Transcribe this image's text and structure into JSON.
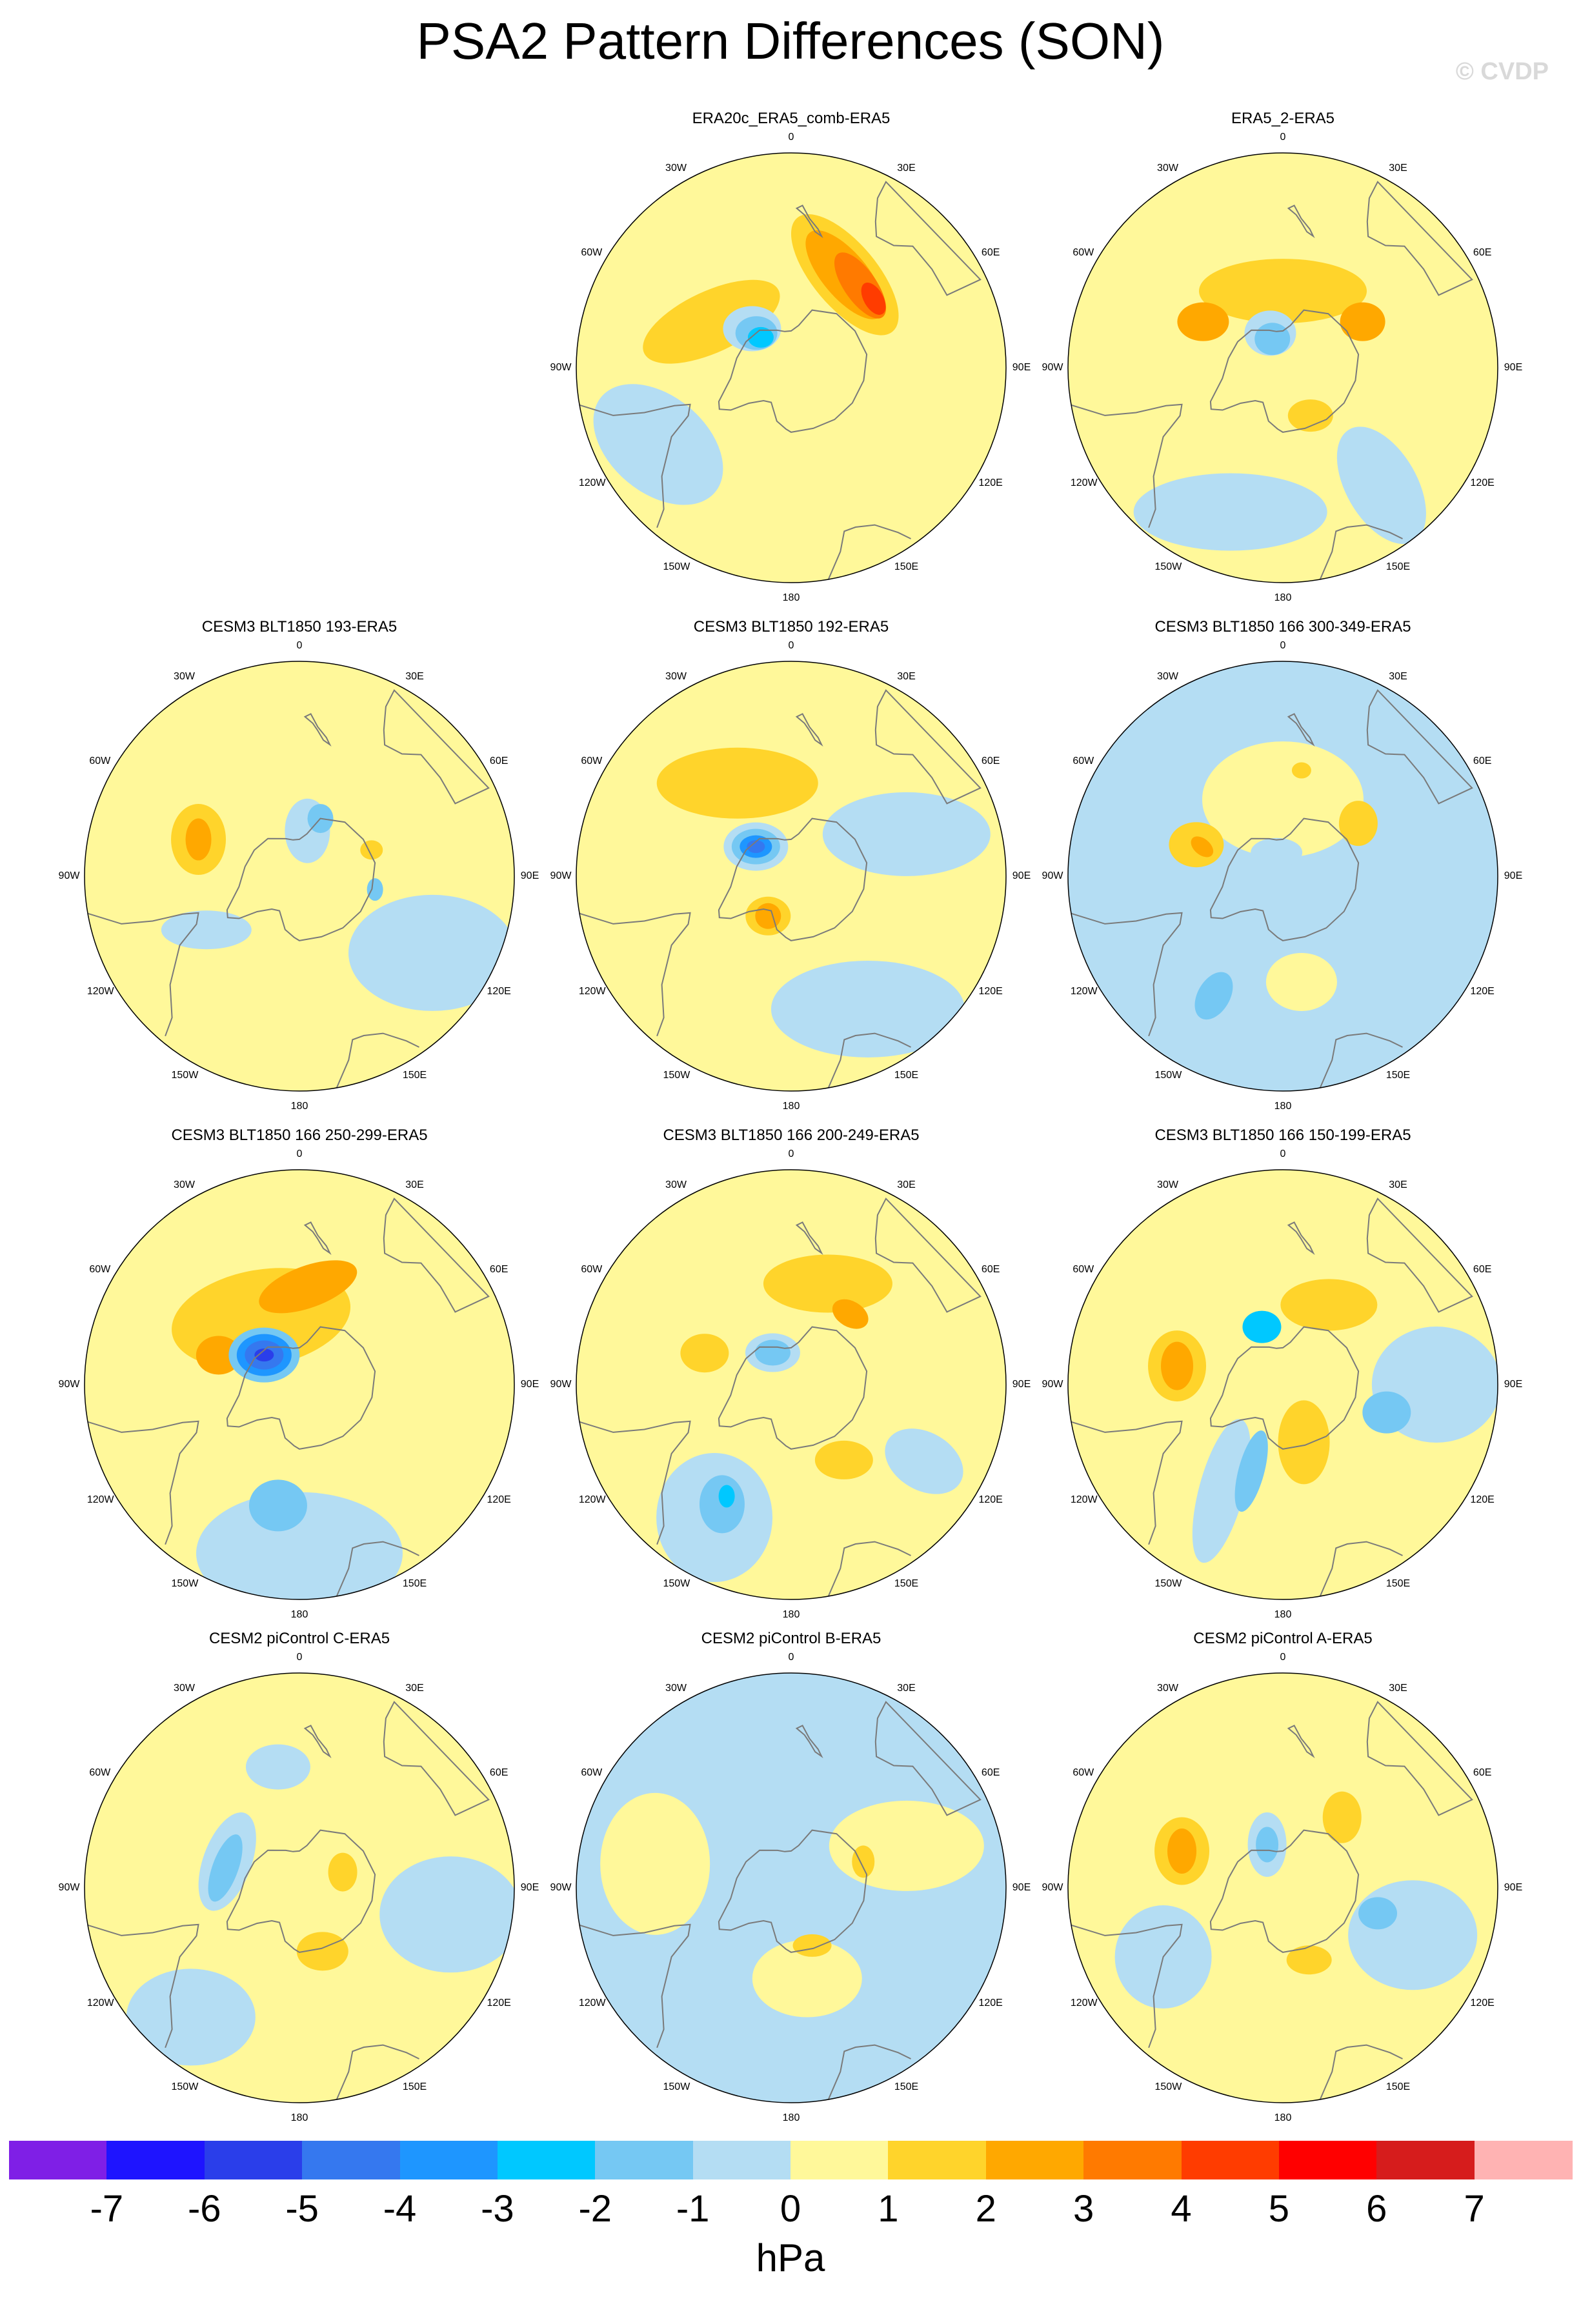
{
  "title": "PSA2 Pattern Differences (SON)",
  "watermark": "© CVDP",
  "units": "hPa",
  "lon_labels": [
    "0",
    "30E",
    "60E",
    "90E",
    "120E",
    "150E",
    "180",
    "150W",
    "120W",
    "90W",
    "60W",
    "30W"
  ],
  "colors": {
    "land_outline": "#7a7a7a",
    "panel_outline": "#000000"
  },
  "colorbar": {
    "colors": [
      "#7f1fe6",
      "#1e14ff",
      "#2a3eea",
      "#3578ef",
      "#1e96ff",
      "#00c8ff",
      "#75c8f3",
      "#b4ddf3",
      "#fff89a",
      "#ffd42b",
      "#ffa800",
      "#ff7a00",
      "#ff3c00",
      "#ff0000",
      "#d61c1c",
      "#ffb3b3"
    ],
    "labels": [
      "-7",
      "-6",
      "-5",
      "-4",
      "-3",
      "-2",
      "-1",
      "0",
      "1",
      "2",
      "3",
      "4",
      "5",
      "6",
      "7"
    ]
  },
  "panels": [
    {
      "title": "ERA20c_ERA5_comb-ERA5",
      "bg": "#fff89a",
      "blobs": [
        {
          "lon": 300,
          "lat": -40,
          "a": 230,
          "b": 150,
          "rot": 40,
          "color": "#b4ddf3"
        },
        {
          "lon": 240,
          "lat": -60,
          "a": 230,
          "b": 95,
          "rot": -25,
          "color": "#ffd42b"
        },
        {
          "lon": 150,
          "lat": -55,
          "a": 230,
          "b": 100,
          "rot": 50,
          "color": "#ffd42b"
        },
        {
          "lon": 150,
          "lat": -55,
          "a": 170,
          "b": 70,
          "rot": 50,
          "color": "#ffa800"
        },
        {
          "lon": 140,
          "lat": -55,
          "a": 120,
          "b": 50,
          "rot": 55,
          "color": "#ff7a00"
        },
        {
          "lon": 130,
          "lat": -55,
          "a": 55,
          "b": 30,
          "rot": 60,
          "color": "#ff3c00"
        },
        {
          "lon": 225,
          "lat": -72,
          "a": 90,
          "b": 70,
          "rot": 0,
          "color": "#b4ddf3"
        },
        {
          "lon": 225,
          "lat": -74,
          "a": 65,
          "b": 52,
          "rot": 0,
          "color": "#75c8f3"
        },
        {
          "lon": 225,
          "lat": -76,
          "a": 40,
          "b": 32,
          "rot": 0,
          "color": "#00c8ff"
        }
      ]
    },
    {
      "title": "ERA5_2-ERA5",
      "bg": "#fff89a",
      "blobs": [
        {
          "lon": 340,
          "lat": -40,
          "a": 300,
          "b": 120,
          "rot": 0,
          "color": "#b4ddf3"
        },
        {
          "lon": 40,
          "lat": -40,
          "a": 200,
          "b": 110,
          "rot": 60,
          "color": "#b4ddf3"
        },
        {
          "lon": 180,
          "lat": -65,
          "a": 260,
          "b": 100,
          "rot": 0,
          "color": "#ffd42b"
        },
        {
          "lon": 240,
          "lat": -60,
          "a": 80,
          "b": 60,
          "rot": 0,
          "color": "#ffa800"
        },
        {
          "lon": 120,
          "lat": -60,
          "a": 70,
          "b": 60,
          "rot": 0,
          "color": "#ffa800"
        },
        {
          "lon": 30,
          "lat": -72,
          "a": 70,
          "b": 50,
          "rot": 0,
          "color": "#ffd42b"
        },
        {
          "lon": 200,
          "lat": -78,
          "a": 80,
          "b": 70,
          "rot": 0,
          "color": "#b4ddf3"
        },
        {
          "lon": 200,
          "lat": -80,
          "a": 55,
          "b": 50,
          "rot": 0,
          "color": "#75c8f3"
        }
      ]
    },
    {
      "title": "CESM3 BLT1850 193-ERA5",
      "bg": "#fff89a",
      "blobs": [
        {
          "lon": 60,
          "lat": -40,
          "a": 260,
          "b": 180,
          "rot": 0,
          "color": "#b4ddf3"
        },
        {
          "lon": 300,
          "lat": -55,
          "a": 140,
          "b": 60,
          "rot": 0,
          "color": "#b4ddf3"
        },
        {
          "lon": 250,
          "lat": -55,
          "a": 85,
          "b": 110,
          "rot": 0,
          "color": "#ffd42b"
        },
        {
          "lon": 250,
          "lat": -55,
          "a": 40,
          "b": 65,
          "rot": 0,
          "color": "#ffa800"
        },
        {
          "lon": 170,
          "lat": -75,
          "a": 70,
          "b": 100,
          "rot": 0,
          "color": "#b4ddf3"
        },
        {
          "lon": 160,
          "lat": -70,
          "a": 40,
          "b": 45,
          "rot": 0,
          "color": "#75c8f3"
        },
        {
          "lon": 80,
          "lat": -65,
          "a": 25,
          "b": 35,
          "rot": 0,
          "color": "#75c8f3"
        },
        {
          "lon": 110,
          "lat": -65,
          "a": 35,
          "b": 30,
          "rot": 0,
          "color": "#ffd42b"
        }
      ]
    },
    {
      "title": "CESM3 BLT1850 192-ERA5",
      "bg": "#fff89a",
      "blobs": [
        {
          "lon": 30,
          "lat": -40,
          "a": 300,
          "b": 150,
          "rot": 0,
          "color": "#b4ddf3"
        },
        {
          "lon": 110,
          "lat": -50,
          "a": 260,
          "b": 130,
          "rot": 0,
          "color": "#b4ddf3"
        },
        {
          "lon": 210,
          "lat": -55,
          "a": 250,
          "b": 110,
          "rot": 0,
          "color": "#ffd42b"
        },
        {
          "lon": 330,
          "lat": -75,
          "a": 70,
          "b": 60,
          "rot": 0,
          "color": "#ffd42b"
        },
        {
          "lon": 330,
          "lat": -75,
          "a": 40,
          "b": 40,
          "rot": 0,
          "color": "#ffa800"
        },
        {
          "lon": 230,
          "lat": -75,
          "a": 100,
          "b": 75,
          "rot": 0,
          "color": "#b4ddf3"
        },
        {
          "lon": 230,
          "lat": -75,
          "a": 75,
          "b": 55,
          "rot": 0,
          "color": "#75c8f3"
        },
        {
          "lon": 230,
          "lat": -75,
          "a": 50,
          "b": 35,
          "rot": 0,
          "color": "#1e96ff"
        },
        {
          "lon": 230,
          "lat": -75,
          "a": 28,
          "b": 20,
          "rot": 0,
          "color": "#3578ef"
        }
      ]
    },
    {
      "title": "CESM3 BLT1850 166 300-349-ERA5",
      "bg": "#b4ddf3",
      "blobs": [
        {
          "lon": 180,
          "lat": -65,
          "a": 250,
          "b": 180,
          "rot": 0,
          "color": "#fff89a"
        },
        {
          "lon": 10,
          "lat": -55,
          "a": 110,
          "b": 90,
          "rot": 0,
          "color": "#fff89a"
        },
        {
          "lon": 250,
          "lat": -60,
          "a": 85,
          "b": 70,
          "rot": 0,
          "color": "#ffd42b"
        },
        {
          "lon": 250,
          "lat": -62,
          "a": 40,
          "b": 25,
          "rot": 40,
          "color": "#ffa800"
        },
        {
          "lon": 125,
          "lat": -60,
          "a": 60,
          "b": 70,
          "rot": 0,
          "color": "#ffd42b"
        },
        {
          "lon": 170,
          "lat": -55,
          "a": 30,
          "b": 25,
          "rot": 0,
          "color": "#ffd42b"
        },
        {
          "lon": 195,
          "lat": -82,
          "a": 80,
          "b": 45,
          "rot": 0,
          "color": "#b4ddf3"
        },
        {
          "lon": 330,
          "lat": -45,
          "a": 50,
          "b": 80,
          "rot": 30,
          "color": "#75c8f3"
        }
      ]
    },
    {
      "title": "CESM3 BLT1850 166 250-299-ERA5",
      "bg": "#fff89a",
      "blobs": [
        {
          "lon": 0,
          "lat": -35,
          "a": 320,
          "b": 190,
          "rot": 0,
          "color": "#b4ddf3"
        },
        {
          "lon": 350,
          "lat": -50,
          "a": 90,
          "b": 80,
          "rot": 0,
          "color": "#75c8f3"
        },
        {
          "lon": 210,
          "lat": -65,
          "a": 280,
          "b": 150,
          "rot": -10,
          "color": "#ffd42b"
        },
        {
          "lon": 175,
          "lat": -58,
          "a": 160,
          "b": 65,
          "rot": -20,
          "color": "#ffa800"
        },
        {
          "lon": 250,
          "lat": -62,
          "a": 70,
          "b": 60,
          "rot": 0,
          "color": "#ffa800"
        },
        {
          "lon": 230,
          "lat": -75,
          "a": 110,
          "b": 85,
          "rot": 0,
          "color": "#75c8f3"
        },
        {
          "lon": 230,
          "lat": -75,
          "a": 85,
          "b": 65,
          "rot": 0,
          "color": "#1e96ff"
        },
        {
          "lon": 230,
          "lat": -75,
          "a": 60,
          "b": 45,
          "rot": 0,
          "color": "#3578ef"
        },
        {
          "lon": 230,
          "lat": -75,
          "a": 30,
          "b": 20,
          "rot": 0,
          "color": "#2a3eea"
        }
      ]
    },
    {
      "title": "CESM3 BLT1850 166 200-249-ERA5",
      "bg": "#fff89a",
      "blobs": [
        {
          "lon": 330,
          "lat": -40,
          "a": 180,
          "b": 200,
          "rot": 0,
          "color": "#b4ddf3"
        },
        {
          "lon": 60,
          "lat": -40,
          "a": 130,
          "b": 90,
          "rot": 30,
          "color": "#b4ddf3"
        },
        {
          "lon": 330,
          "lat": -45,
          "a": 70,
          "b": 90,
          "rot": 0,
          "color": "#75c8f3"
        },
        {
          "lon": 330,
          "lat": -48,
          "a": 25,
          "b": 35,
          "rot": 0,
          "color": "#00c8ff"
        },
        {
          "lon": 35,
          "lat": -60,
          "a": 90,
          "b": 60,
          "rot": 0,
          "color": "#ffd42b"
        },
        {
          "lon": 160,
          "lat": -55,
          "a": 200,
          "b": 90,
          "rot": 0,
          "color": "#ffd42b"
        },
        {
          "lon": 140,
          "lat": -60,
          "a": 60,
          "b": 40,
          "rot": 30,
          "color": "#ffa800"
        },
        {
          "lon": 250,
          "lat": -60,
          "a": 75,
          "b": 60,
          "rot": 0,
          "color": "#ffd42b"
        },
        {
          "lon": 210,
          "lat": -78,
          "a": 85,
          "b": 60,
          "rot": 0,
          "color": "#b4ddf3"
        },
        {
          "lon": 210,
          "lat": -78,
          "a": 55,
          "b": 40,
          "rot": 0,
          "color": "#75c8f3"
        }
      ]
    },
    {
      "title": "CESM3 BLT1850 166 150-199-ERA5",
      "bg": "#fff89a",
      "blobs": [
        {
          "lon": 90,
          "lat": -40,
          "a": 200,
          "b": 180,
          "rot": 0,
          "color": "#b4ddf3"
        },
        {
          "lon": 75,
          "lat": -55,
          "a": 75,
          "b": 65,
          "rot": 0,
          "color": "#75c8f3"
        },
        {
          "lon": 330,
          "lat": -50,
          "a": 70,
          "b": 230,
          "rot": 15,
          "color": "#b4ddf3"
        },
        {
          "lon": 340,
          "lat": -60,
          "a": 40,
          "b": 130,
          "rot": 15,
          "color": "#75c8f3"
        },
        {
          "lon": 200,
          "lat": -70,
          "a": 60,
          "b": 50,
          "rot": 0,
          "color": "#00c8ff"
        },
        {
          "lon": 260,
          "lat": -55,
          "a": 90,
          "b": 110,
          "rot": 0,
          "color": "#ffd42b"
        },
        {
          "lon": 260,
          "lat": -55,
          "a": 50,
          "b": 75,
          "rot": 0,
          "color": "#ffa800"
        },
        {
          "lon": 20,
          "lat": -70,
          "a": 80,
          "b": 130,
          "rot": 0,
          "color": "#ffd42b"
        },
        {
          "lon": 150,
          "lat": -60,
          "a": 150,
          "b": 80,
          "rot": 0,
          "color": "#ffd42b"
        }
      ]
    },
    {
      "title": "CESM2 piControl C-ERA5",
      "bg": "#fff89a",
      "blobs": [
        {
          "lon": 80,
          "lat": -40,
          "a": 220,
          "b": 180,
          "rot": 0,
          "color": "#b4ddf3"
        },
        {
          "lon": 320,
          "lat": -35,
          "a": 200,
          "b": 150,
          "rot": 0,
          "color": "#b4ddf3"
        },
        {
          "lon": 190,
          "lat": -50,
          "a": 100,
          "b": 70,
          "rot": 0,
          "color": "#b4ddf3"
        },
        {
          "lon": 250,
          "lat": -65,
          "a": 75,
          "b": 160,
          "rot": 20,
          "color": "#b4ddf3"
        },
        {
          "lon": 255,
          "lat": -65,
          "a": 40,
          "b": 110,
          "rot": 20,
          "color": "#75c8f3"
        },
        {
          "lon": 20,
          "lat": -68,
          "a": 80,
          "b": 60,
          "rot": 0,
          "color": "#ffd42b"
        },
        {
          "lon": 110,
          "lat": -75,
          "a": 45,
          "b": 60,
          "rot": 0,
          "color": "#ffd42b"
        }
      ]
    },
    {
      "title": "CESM2 piControl B-ERA5",
      "bg": "#b4ddf3",
      "blobs": [
        {
          "lon": 110,
          "lat": -50,
          "a": 240,
          "b": 140,
          "rot": 0,
          "color": "#fff89a"
        },
        {
          "lon": 260,
          "lat": -45,
          "a": 170,
          "b": 220,
          "rot": 0,
          "color": "#fff89a"
        },
        {
          "lon": 10,
          "lat": -60,
          "a": 170,
          "b": 120,
          "rot": 0,
          "color": "#fff89a"
        },
        {
          "lon": 20,
          "lat": -70,
          "a": 60,
          "b": 35,
          "rot": 0,
          "color": "#ffd42b"
        },
        {
          "lon": 110,
          "lat": -65,
          "a": 35,
          "b": 50,
          "rot": 0,
          "color": "#ffd42b"
        }
      ]
    },
    {
      "title": "CESM2 piControl A-ERA5",
      "bg": "#fff89a",
      "blobs": [
        {
          "lon": 70,
          "lat": -45,
          "a": 200,
          "b": 170,
          "rot": 0,
          "color": "#b4ddf3"
        },
        {
          "lon": 300,
          "lat": -45,
          "a": 150,
          "b": 160,
          "rot": 0,
          "color": "#b4ddf3"
        },
        {
          "lon": 75,
          "lat": -58,
          "a": 60,
          "b": 50,
          "rot": 0,
          "color": "#75c8f3"
        },
        {
          "lon": 200,
          "lat": -75,
          "a": 60,
          "b": 100,
          "rot": 0,
          "color": "#b4ddf3"
        },
        {
          "lon": 200,
          "lat": -75,
          "a": 35,
          "b": 55,
          "rot": 0,
          "color": "#75c8f3"
        },
        {
          "lon": 250,
          "lat": -55,
          "a": 85,
          "b": 105,
          "rot": 0,
          "color": "#ffd42b"
        },
        {
          "lon": 250,
          "lat": -55,
          "a": 45,
          "b": 70,
          "rot": 0,
          "color": "#ffa800"
        },
        {
          "lon": 140,
          "lat": -60,
          "a": 60,
          "b": 80,
          "rot": 0,
          "color": "#ffd42b"
        },
        {
          "lon": 20,
          "lat": -65,
          "a": 70,
          "b": 45,
          "rot": 0,
          "color": "#ffd42b"
        }
      ]
    }
  ]
}
